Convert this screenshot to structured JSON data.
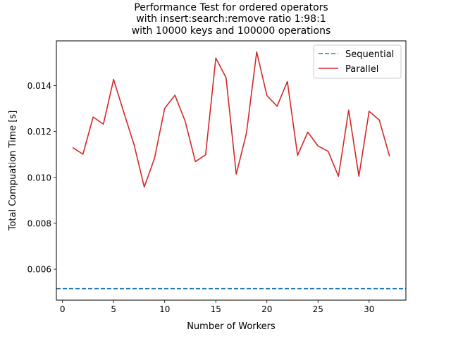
{
  "chart_data": {
    "type": "line",
    "title_lines": [
      "Performance Test for ordered operators",
      "with insert:search:remove ratio 1:98:1",
      "with 10000 keys and 100000 operations"
    ],
    "xlabel": "Number of Workers",
    "ylabel": "Total Compuation Time [s]",
    "xlim": [
      -0.6,
      33.6
    ],
    "ylim": [
      0.00465,
      0.01595
    ],
    "xticks": [
      0,
      5,
      10,
      15,
      20,
      25,
      30
    ],
    "yticks": [
      0.006,
      0.008,
      0.01,
      0.012,
      0.014
    ],
    "ytick_labels": [
      "0.006",
      "0.008",
      "0.010",
      "0.012",
      "0.014"
    ],
    "grid": false,
    "legend_position": "top-right",
    "series": [
      {
        "name": "Sequential",
        "style": "dashed",
        "color": "#1f77b4",
        "y_constant": 0.00515
      },
      {
        "name": "Parallel",
        "style": "solid",
        "color": "#d62728",
        "x": [
          1,
          2,
          3,
          4,
          5,
          6,
          7,
          8,
          9,
          10,
          11,
          12,
          13,
          14,
          15,
          16,
          17,
          18,
          19,
          20,
          21,
          22,
          23,
          24,
          25,
          26,
          27,
          28,
          29,
          30,
          31,
          32
        ],
        "values": [
          0.0113,
          0.01101,
          0.01263,
          0.01232,
          0.01427,
          0.01283,
          0.01143,
          0.00958,
          0.01083,
          0.01301,
          0.01358,
          0.01245,
          0.01069,
          0.01098,
          0.0152,
          0.01435,
          0.01014,
          0.01193,
          0.01547,
          0.01357,
          0.0131,
          0.01418,
          0.01096,
          0.01197,
          0.01137,
          0.01113,
          0.01005,
          0.01293,
          0.01005,
          0.01288,
          0.0125,
          0.01092
        ]
      }
    ]
  }
}
